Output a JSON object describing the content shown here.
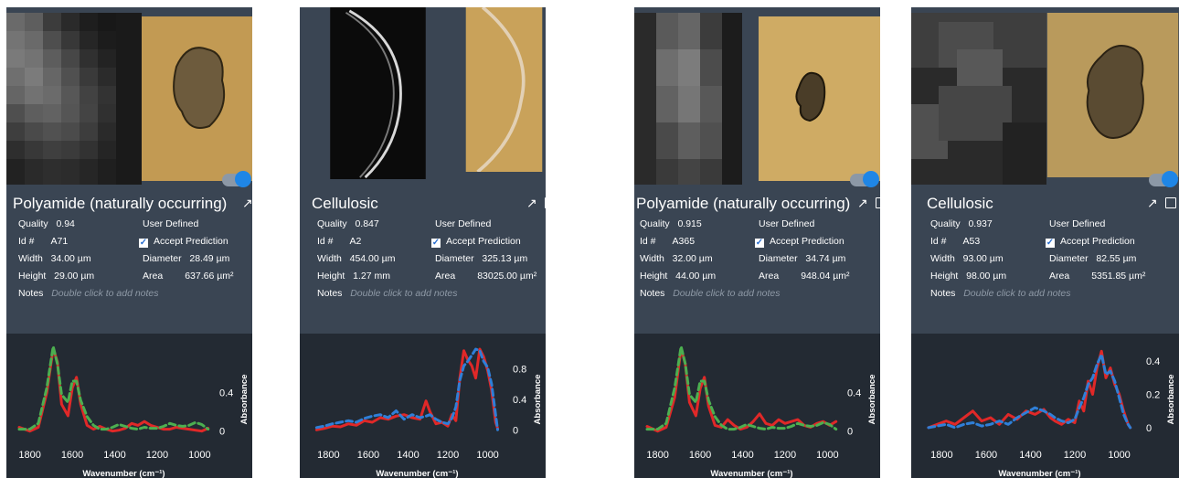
{
  "colors": {
    "card_bg": "#3a4553",
    "chart_bg": "#232a33",
    "toggle_on": "#1f86e6",
    "measured_line": "#e02828",
    "reference_green": "#4caf50",
    "reference_blue": "#2f7fd8",
    "notes_placeholder": "#8e99a6"
  },
  "labels": {
    "quality": "Quality",
    "id": "Id #",
    "width": "Width",
    "height": "Height",
    "notes": "Notes",
    "user_defined": "User Defined",
    "accept_prediction": "Accept Prediction",
    "diameter": "Diameter",
    "area": "Area",
    "notes_placeholder": "Double click to add notes",
    "open_icon": "↗"
  },
  "cards": [
    {
      "title": "Polyamide (naturally occurring)",
      "quality": "0.94",
      "id": "A71",
      "width": "34.00 µm",
      "height": "29.00 µm",
      "diameter": "28.49 µm",
      "area": "637.66 µm²",
      "accept_prediction": true,
      "toggle_on": true,
      "chart_data": {
        "type": "line",
        "xlabel": "Wavenumber (cm⁻¹)",
        "ylabel": "Absorbance",
        "x_ticks": [
          "1800",
          "1600",
          "1400",
          "1200",
          "1000"
        ],
        "y_ticks": [
          "0",
          "0.4"
        ],
        "xlim": [
          1850,
          950
        ],
        "ylim": [
          -0.05,
          0.9
        ],
        "series": [
          {
            "style": "solid",
            "color": "#e02828",
            "x": [
              1850,
              1800,
              1760,
              1720,
              1690,
              1670,
              1650,
              1620,
              1600,
              1580,
              1560,
              1530,
              1500,
              1470,
              1440,
              1410,
              1380,
              1350,
              1320,
              1290,
              1260,
              1230,
              1200,
              1170,
              1140,
              1110,
              1080,
              1050,
              1020,
              990,
              960
            ],
            "y": [
              0.04,
              0.0,
              0.04,
              0.4,
              0.86,
              0.72,
              0.28,
              0.16,
              0.45,
              0.56,
              0.28,
              0.06,
              0.02,
              0.05,
              0.02,
              0.0,
              0.01,
              0.03,
              0.08,
              0.06,
              0.1,
              0.06,
              0.04,
              0.02,
              0.02,
              0.04,
              0.03,
              0.02,
              0.01,
              0.0,
              0.03
            ]
          },
          {
            "style": "dashed",
            "color": "#4caf50",
            "x": [
              1850,
              1800,
              1760,
              1720,
              1690,
              1670,
              1650,
              1620,
              1600,
              1580,
              1560,
              1530,
              1500,
              1470,
              1440,
              1410,
              1380,
              1350,
              1320,
              1290,
              1260,
              1230,
              1200,
              1170,
              1140,
              1110,
              1080,
              1050,
              1020,
              990,
              960
            ],
            "y": [
              0.02,
              0.02,
              0.08,
              0.45,
              0.88,
              0.7,
              0.38,
              0.3,
              0.52,
              0.52,
              0.32,
              0.15,
              0.06,
              0.02,
              0.02,
              0.04,
              0.07,
              0.05,
              0.03,
              0.02,
              0.04,
              0.03,
              0.03,
              0.05,
              0.08,
              0.06,
              0.05,
              0.06,
              0.09,
              0.07,
              0.02
            ]
          }
        ]
      }
    },
    {
      "title": "Cellulosic",
      "quality": "0.847",
      "id": "A2",
      "width": "454.00 µm",
      "height": "1.27 mm",
      "diameter": "325.13 µm",
      "area": "83025.00 µm²",
      "accept_prediction": true,
      "toggle_on": false,
      "chart_data": {
        "type": "line",
        "xlabel": "Wavenumber (cm⁻¹)",
        "ylabel": "Absorbance",
        "x_ticks": [
          "1800",
          "1600",
          "1400",
          "1200",
          "1000"
        ],
        "y_ticks": [
          "0",
          "0.4",
          "0.8"
        ],
        "xlim": [
          1880,
          920
        ],
        "ylim": [
          -0.08,
          1.12
        ],
        "series": [
          {
            "style": "solid",
            "color": "#e02828",
            "x": [
              1860,
              1820,
              1780,
              1740,
              1700,
              1660,
              1620,
              1580,
              1540,
              1500,
              1460,
              1420,
              1380,
              1340,
              1310,
              1290,
              1260,
              1230,
              1200,
              1180,
              1160,
              1140,
              1120,
              1100,
              1080,
              1060,
              1040,
              1020,
              1000,
              980,
              960,
              950
            ],
            "y": [
              0.0,
              0.02,
              0.05,
              0.04,
              0.08,
              0.06,
              0.12,
              0.1,
              0.16,
              0.14,
              0.18,
              0.2,
              0.16,
              0.14,
              0.38,
              0.24,
              0.08,
              0.1,
              0.05,
              0.2,
              0.12,
              0.68,
              1.04,
              0.92,
              0.84,
              0.68,
              1.06,
              0.96,
              0.78,
              0.52,
              0.1,
              0.02
            ]
          },
          {
            "style": "dashed",
            "color": "#2f7fd8",
            "x": [
              1860,
              1820,
              1780,
              1740,
              1700,
              1660,
              1620,
              1580,
              1540,
              1500,
              1460,
              1420,
              1380,
              1340,
              1310,
              1290,
              1260,
              1230,
              1200,
              1180,
              1160,
              1140,
              1120,
              1100,
              1080,
              1060,
              1040,
              1020,
              1000,
              980,
              960,
              950
            ],
            "y": [
              0.03,
              0.05,
              0.08,
              0.1,
              0.12,
              0.1,
              0.15,
              0.18,
              0.2,
              0.16,
              0.25,
              0.14,
              0.2,
              0.16,
              0.18,
              0.2,
              0.14,
              0.1,
              0.08,
              0.15,
              0.3,
              0.65,
              0.84,
              0.9,
              0.98,
              1.06,
              1.04,
              0.9,
              0.82,
              0.6,
              0.2,
              0.0
            ]
          }
        ]
      }
    },
    {
      "title": "Polyamide (naturally occurring)",
      "quality": "0.915",
      "id": "A365",
      "width": "32.00 µm",
      "height": "44.00 µm",
      "diameter": "34.74 µm",
      "area": "948.04 µm²",
      "accept_prediction": true,
      "toggle_on": true,
      "chart_data": {
        "type": "line",
        "xlabel": "Wavenumber (cm⁻¹)",
        "ylabel": "Absorbance",
        "x_ticks": [
          "1800",
          "1600",
          "1400",
          "1200",
          "1000"
        ],
        "y_ticks": [
          "0",
          "0.4"
        ],
        "xlim": [
          1850,
          950
        ],
        "ylim": [
          -0.05,
          0.9
        ],
        "series": [
          {
            "style": "solid",
            "color": "#e02828",
            "x": [
              1850,
              1800,
              1760,
              1720,
              1690,
              1670,
              1650,
              1620,
              1600,
              1580,
              1560,
              1530,
              1500,
              1470,
              1440,
              1410,
              1380,
              1350,
              1320,
              1290,
              1260,
              1230,
              1200,
              1170,
              1140,
              1110,
              1080,
              1050,
              1020,
              990,
              960
            ],
            "y": [
              0.05,
              0.0,
              0.04,
              0.35,
              0.86,
              0.7,
              0.3,
              0.16,
              0.44,
              0.56,
              0.26,
              0.06,
              0.04,
              0.12,
              0.06,
              0.02,
              0.04,
              0.1,
              0.18,
              0.08,
              0.06,
              0.12,
              0.08,
              0.1,
              0.12,
              0.06,
              0.04,
              0.08,
              0.1,
              0.06,
              0.1
            ]
          },
          {
            "style": "dashed",
            "color": "#4caf50",
            "x": [
              1850,
              1800,
              1760,
              1720,
              1690,
              1670,
              1650,
              1620,
              1600,
              1580,
              1560,
              1530,
              1500,
              1470,
              1440,
              1410,
              1380,
              1350,
              1320,
              1290,
              1260,
              1230,
              1200,
              1170,
              1140,
              1110,
              1080,
              1050,
              1020,
              990,
              960
            ],
            "y": [
              0.02,
              0.02,
              0.08,
              0.45,
              0.88,
              0.7,
              0.38,
              0.3,
              0.52,
              0.52,
              0.32,
              0.15,
              0.06,
              0.02,
              0.02,
              0.04,
              0.07,
              0.05,
              0.03,
              0.02,
              0.04,
              0.03,
              0.03,
              0.05,
              0.08,
              0.06,
              0.05,
              0.06,
              0.09,
              0.07,
              0.02
            ]
          }
        ]
      }
    },
    {
      "title": "Cellulosic",
      "quality": "0.937",
      "id": "A53",
      "width": "93.00 µm",
      "height": "98.00 µm",
      "diameter": "82.55 µm",
      "area": "5351.85 µm²",
      "accept_prediction": true,
      "toggle_on": true,
      "chart_data": {
        "type": "line",
        "xlabel": "Wavenumber (cm⁻¹)",
        "ylabel": "Absorbance",
        "x_ticks": [
          "1800",
          "1600",
          "1400",
          "1200",
          "1000"
        ],
        "y_ticks": [
          "0",
          "0.2",
          "0.4"
        ],
        "xlim": [
          1880,
          920
        ],
        "ylim": [
          -0.05,
          0.5
        ],
        "series": [
          {
            "style": "solid",
            "color": "#e02828",
            "x": [
              1860,
              1820,
              1780,
              1740,
              1700,
              1660,
              1620,
              1580,
              1540,
              1500,
              1460,
              1420,
              1380,
              1340,
              1310,
              1290,
              1260,
              1230,
              1200,
              1180,
              1160,
              1140,
              1120,
              1100,
              1080,
              1060,
              1040,
              1020,
              1000,
              980,
              960,
              950
            ],
            "y": [
              0.0,
              0.02,
              0.04,
              0.02,
              0.06,
              0.1,
              0.04,
              0.06,
              0.02,
              0.08,
              0.05,
              0.1,
              0.08,
              0.11,
              0.06,
              0.04,
              0.02,
              0.05,
              0.03,
              0.16,
              0.1,
              0.28,
              0.2,
              0.36,
              0.46,
              0.3,
              0.36,
              0.26,
              0.2,
              0.1,
              0.02,
              0.0
            ]
          },
          {
            "style": "dashed",
            "color": "#2f7fd8",
            "x": [
              1860,
              1820,
              1780,
              1740,
              1700,
              1660,
              1620,
              1580,
              1540,
              1500,
              1460,
              1420,
              1380,
              1340,
              1310,
              1290,
              1260,
              1230,
              1200,
              1180,
              1160,
              1140,
              1120,
              1100,
              1080,
              1060,
              1040,
              1020,
              1000,
              980,
              960,
              950
            ],
            "y": [
              0.0,
              0.01,
              0.02,
              0.0,
              0.02,
              0.03,
              0.01,
              0.02,
              0.04,
              0.02,
              0.06,
              0.09,
              0.12,
              0.1,
              0.08,
              0.06,
              0.04,
              0.03,
              0.05,
              0.12,
              0.18,
              0.26,
              0.3,
              0.38,
              0.44,
              0.32,
              0.34,
              0.28,
              0.18,
              0.08,
              0.02,
              0.0
            ]
          }
        ]
      }
    }
  ]
}
